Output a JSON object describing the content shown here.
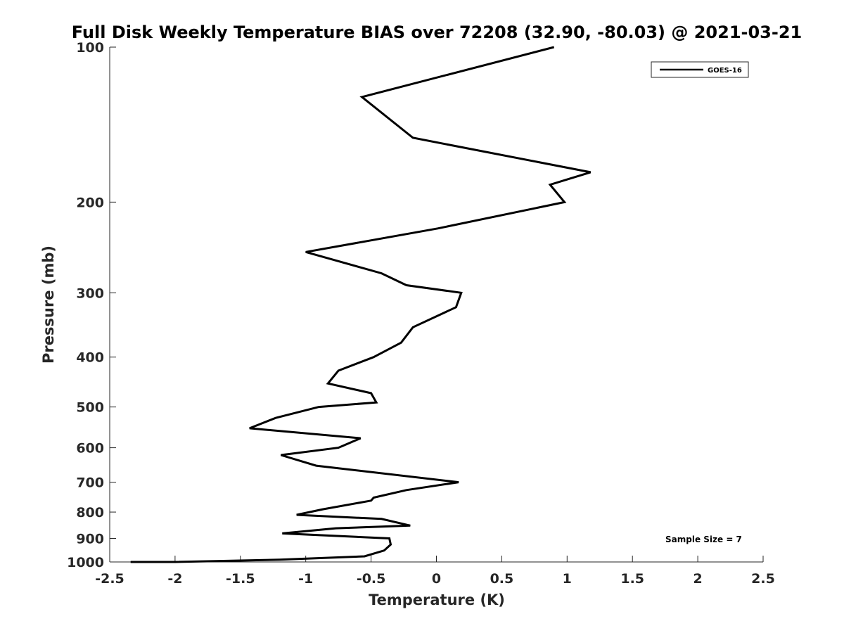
{
  "chart_data": {
    "type": "line",
    "title": "Full Disk Weekly Temperature BIAS over 72208 (32.90, -80.03) @ 2021-03-21",
    "xlabel": "Temperature (K)",
    "ylabel": "Pressure (mb)",
    "xlim": [
      -2.5,
      2.5
    ],
    "ylim": [
      100,
      1000
    ],
    "y_scale": "log",
    "y_reversed": true,
    "x_ticks": [
      -2.5,
      -2,
      -1.5,
      -1,
      -0.5,
      0,
      0.5,
      1,
      1.5,
      2,
      2.5
    ],
    "x_tick_labels": [
      "-2.5",
      "-2",
      "-1.5",
      "-1",
      "-0.5",
      "0",
      "0.5",
      "1",
      "1.5",
      "2",
      "2.5"
    ],
    "y_ticks": [
      100,
      200,
      300,
      400,
      500,
      600,
      700,
      800,
      900,
      1000
    ],
    "y_tick_labels": [
      "100",
      "200",
      "300",
      "400",
      "500",
      "600",
      "700",
      "800",
      "900",
      "1000"
    ],
    "grid": false,
    "legend_position": "top-right",
    "series": [
      {
        "name": "GOES-16",
        "color": "#000000",
        "points": [
          [
            0.9,
            100
          ],
          [
            -0.57,
            125
          ],
          [
            -0.18,
            150
          ],
          [
            1.18,
            175
          ],
          [
            0.87,
            185
          ],
          [
            0.98,
            200
          ],
          [
            0.01,
            225
          ],
          [
            -1.0,
            250
          ],
          [
            -0.42,
            275
          ],
          [
            -0.23,
            290
          ],
          [
            0.19,
            300
          ],
          [
            0.15,
            320
          ],
          [
            -0.18,
            350
          ],
          [
            -0.27,
            375
          ],
          [
            -0.48,
            400
          ],
          [
            -0.75,
            425
          ],
          [
            -0.83,
            450
          ],
          [
            -0.5,
            470
          ],
          [
            -0.46,
            490
          ],
          [
            -0.9,
            500
          ],
          [
            -1.23,
            525
          ],
          [
            -1.43,
            550
          ],
          [
            -0.58,
            575
          ],
          [
            -0.75,
            600
          ],
          [
            -1.19,
            620
          ],
          [
            -0.92,
            650
          ],
          [
            0.17,
            700
          ],
          [
            -0.23,
            725
          ],
          [
            -0.48,
            750
          ],
          [
            -0.5,
            760
          ],
          [
            -0.87,
            790
          ],
          [
            -1.07,
            810
          ],
          [
            -0.42,
            825
          ],
          [
            -0.2,
            850
          ],
          [
            -0.77,
            860
          ],
          [
            -1.18,
            880
          ],
          [
            -0.36,
            900
          ],
          [
            -0.35,
            925
          ],
          [
            -0.4,
            950
          ],
          [
            -0.55,
            975
          ],
          [
            -1.2,
            990
          ],
          [
            -2.0,
            1000
          ],
          [
            -2.34,
            1000
          ]
        ]
      }
    ],
    "annotations": [
      {
        "text": "Sample Size = 7"
      }
    ]
  }
}
